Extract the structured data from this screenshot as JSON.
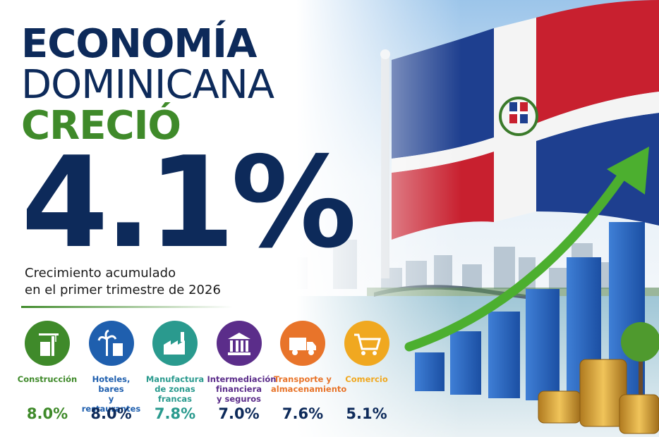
{
  "headline": {
    "line1": "ECONOMÍA",
    "line2": "DOMINICANA",
    "line3": "CRECIÓ",
    "figure": "4.1%"
  },
  "subtitle": {
    "line1": "Crecimiento acumulado",
    "line2": "en el primer trimestre de 2026"
  },
  "sectors": [
    {
      "name": [
        "Construcción"
      ],
      "value": "8.0%"
    },
    {
      "name": [
        "Hoteles, bares",
        "y restaurantes"
      ],
      "value": "8.0%"
    },
    {
      "name": [
        "Manufactura",
        "de zonas francas"
      ],
      "value": "7.8%"
    },
    {
      "name": [
        "Intermediación",
        "financiera",
        "y seguros"
      ],
      "value": "7.0%"
    },
    {
      "name": [
        "Transporte y",
        "almacenamiento"
      ],
      "value": "7.6%"
    },
    {
      "name": [
        "Comercio"
      ],
      "value": "5.1%"
    }
  ]
}
